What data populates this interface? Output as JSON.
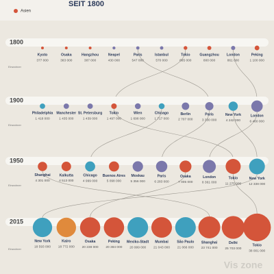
{
  "chart_data": {
    "type": "bubble-rows",
    "title": "SEIT 1800",
    "legend": [
      "Asien"
    ],
    "unit_label": "Einwohner",
    "watermark": "Vis zone",
    "rows": [
      {
        "year": "1800",
        "cities": [
          "Kyoto",
          "Osaka",
          "Hangzhou",
          "Neapel",
          "Paris",
          "Istanbul",
          "Tokio",
          "Guangzhou",
          "London",
          "Peking"
        ],
        "values": [
          377000,
          383000,
          387000,
          430000,
          547000,
          570000,
          685000,
          800000,
          861000,
          1100000
        ],
        "value_labels": [
          "377 000",
          "383 000",
          "387 000",
          "430 000",
          "547 000",
          "570 000",
          "685 000",
          "800 000",
          "861 000",
          "1 100 000"
        ],
        "colors": [
          "#d4553a",
          "#d4553a",
          "#d4553a",
          "#7b78ab",
          "#7b78ab",
          "#7b78ab",
          "#d4553a",
          "#d4553a",
          "#7b78ab",
          "#d4553a"
        ]
      },
      {
        "year": "1900",
        "cities": [
          "Philadelphia",
          "Manchester",
          "St. Petersburg",
          "Tokio",
          "Wien",
          "Chicago",
          "Berlin",
          "Paris",
          "New York",
          "London"
        ],
        "values": [
          1418000,
          1435000,
          1439000,
          1497000,
          1698000,
          1717000,
          2707000,
          3330000,
          4242000,
          6480000
        ],
        "value_labels": [
          "1 418 000",
          "1 435 000",
          "1 439 000",
          "1 497 000",
          "1 698 000",
          "1 717 000",
          "2 707 000",
          "3 330 000",
          "4 242 000",
          "6 480 000"
        ],
        "colors": [
          "#3fa0be",
          "#7b78ab",
          "#7b78ab",
          "#d4553a",
          "#7b78ab",
          "#3fa0be",
          "#7b78ab",
          "#7b78ab",
          "#3fa0be",
          "#7b78ab"
        ]
      },
      {
        "year": "1950",
        "cities": [
          "Shanghai",
          "Kalkutta",
          "Chicago",
          "Buenos Aires",
          "Moskau",
          "Paris",
          "Osaka",
          "London",
          "Tokio",
          "New York"
        ],
        "values": [
          4301000,
          4513000,
          4999000,
          5098000,
          5356000,
          6283000,
          7005000,
          8361000,
          11275000,
          12338000
        ],
        "value_labels": [
          "4 301 000",
          "4 513 000",
          "4 999 000",
          "5 098 000",
          "5 356 000",
          "6 283 000",
          "7 005 000",
          "8 361 000",
          "11 275 000",
          "12 338 000"
        ],
        "colors": [
          "#d4553a",
          "#d4553a",
          "#3fa0be",
          "#d4553a",
          "#7b78ab",
          "#7b78ab",
          "#d4553a",
          "#7b78ab",
          "#d4553a",
          "#3fa0be"
        ]
      },
      {
        "year": "2015",
        "cities": [
          "New York",
          "Kairo",
          "Osaka",
          "Peking",
          "Mexiko-Stadt",
          "Mumbai",
          "São Paulo",
          "Shanghai",
          "Delhi",
          "Tokio"
        ],
        "values": [
          18593000,
          18772000,
          20238000,
          20384000,
          20999000,
          21043000,
          21066000,
          23741000,
          25703000,
          38001000
        ],
        "value_labels": [
          "18 593 000",
          "18 772 000",
          "20 238 000",
          "20 384 000",
          "20 999 000",
          "21 043 000",
          "21 066 000",
          "23 741 000",
          "25 703 000",
          "38 001 000"
        ],
        "colors": [
          "#3fa0be",
          "#e08a3c",
          "#d4553a",
          "#d4553a",
          "#3fa0be",
          "#d4553a",
          "#3fa0be",
          "#d4553a",
          "#d4553a",
          "#d4553a"
        ]
      }
    ]
  }
}
